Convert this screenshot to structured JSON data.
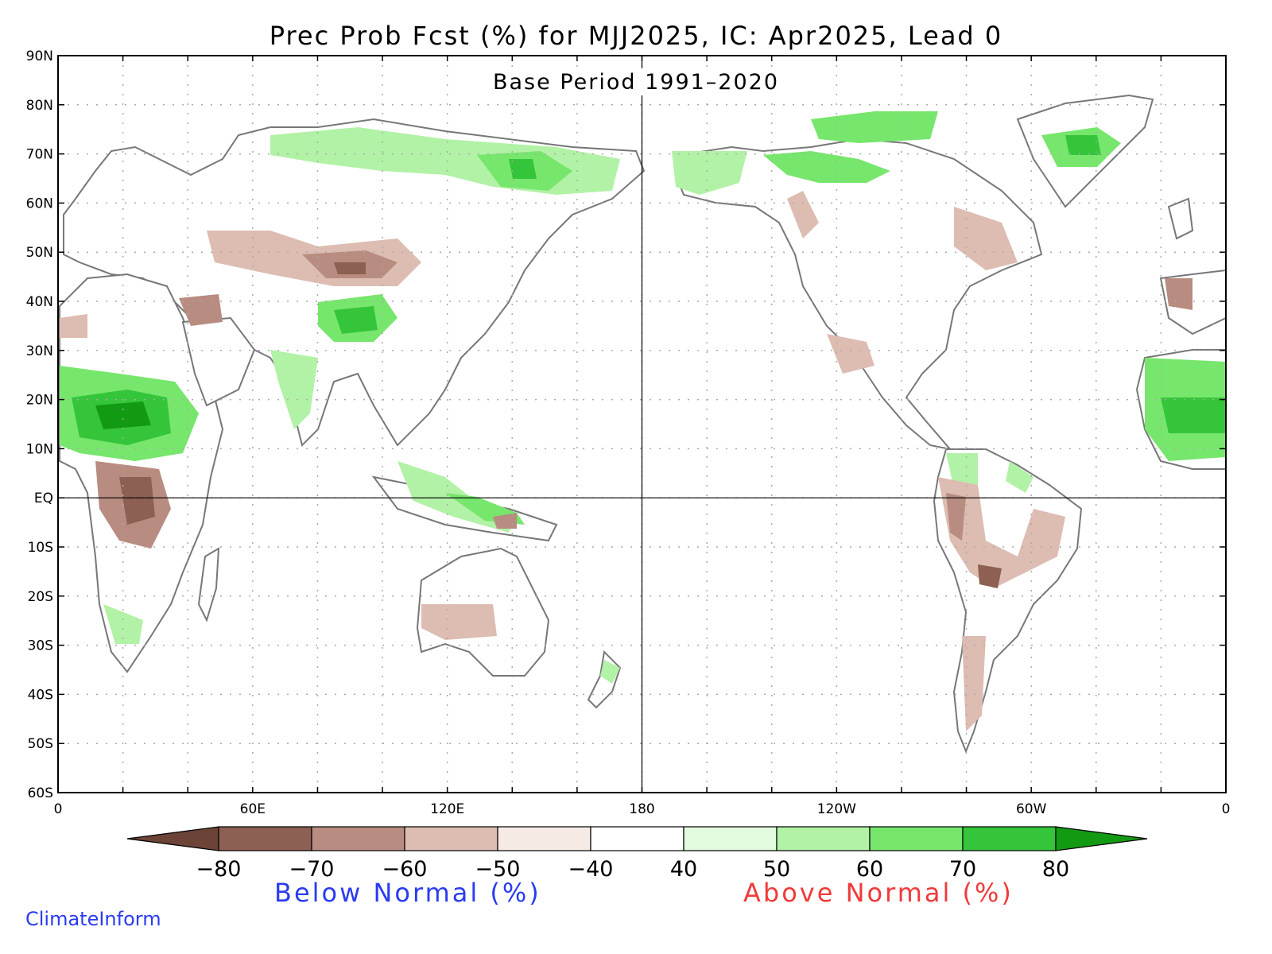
{
  "map": {
    "title": "Prec Prob Fcst (%) for MJJ2025, IC: Apr2025, Lead 0",
    "subtitle": "Base Period 1991–2020",
    "projection": "equirectangular, centered on 180",
    "lon_range": [
      0,
      360
    ],
    "lat_range": [
      -60,
      90
    ],
    "lat_ticks": [
      "90N",
      "80N",
      "70N",
      "60N",
      "50N",
      "40N",
      "30N",
      "20N",
      "10N",
      "EQ",
      "10S",
      "20S",
      "30S",
      "40S",
      "50S",
      "60S"
    ],
    "lon_ticks": [
      "0",
      "60E",
      "120E",
      "180",
      "120W",
      "60W",
      "0"
    ],
    "grid": "dotted",
    "reference_lines": [
      "equator",
      "180 meridian"
    ]
  },
  "legend": {
    "tick_labels": [
      "−80",
      "−70",
      "−60",
      "−50",
      "−40",
      "40",
      "50",
      "60",
      "70",
      "80"
    ],
    "colors": [
      "#6b4337",
      "#8e5f53",
      "#b88c80",
      "#ddbcb2",
      "#f6ebe4",
      "#ffffff",
      "#e2fadd",
      "#b2f2a6",
      "#77e66c",
      "#35c53a",
      "#139a13"
    ],
    "below_label": "Below Normal (%)",
    "above_label": "Above Normal (%)",
    "below_color": "#2a3cf0",
    "above_color": "#f03a3a"
  },
  "credit": {
    "text": "ClimateInform",
    "color": "#2a3cf0"
  },
  "colors": {
    "coast": "#777777",
    "frame": "#000000",
    "grid": "#aaaaaa"
  }
}
